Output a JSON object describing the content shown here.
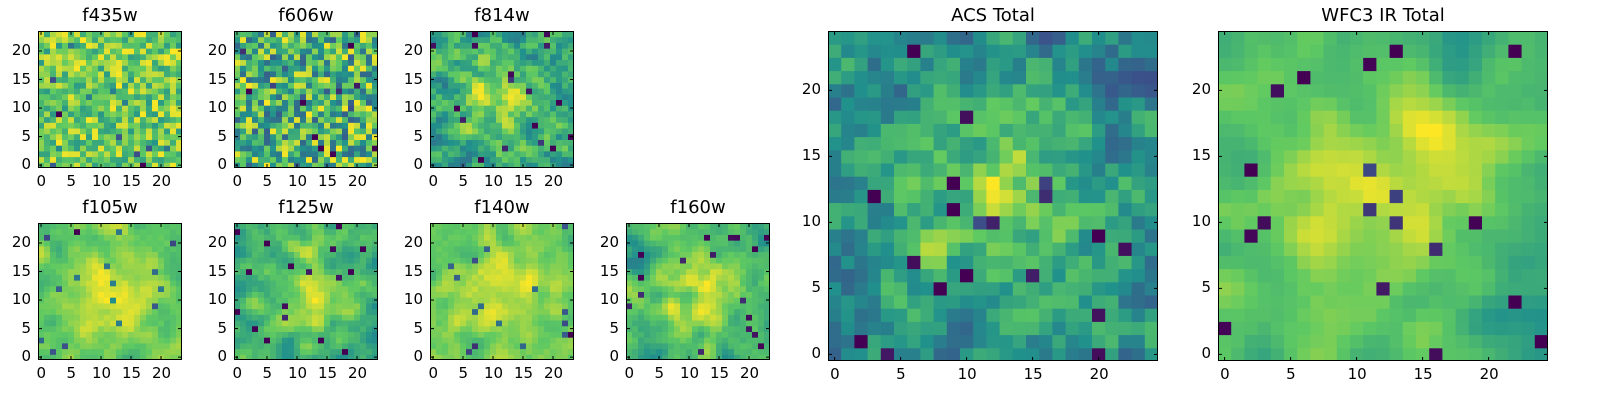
{
  "colormap": [
    "#440154",
    "#3b528b",
    "#21918c",
    "#5ec962",
    "#fde725"
  ],
  "chart_data": [
    {
      "id": "f435w",
      "type": "heatmap",
      "title": "f435w",
      "size": 24,
      "seed": 435,
      "smooth": 0,
      "xticks": [
        0,
        5,
        10,
        15,
        20
      ],
      "yticks": [
        0,
        5,
        10,
        15,
        20
      ]
    },
    {
      "id": "f606w",
      "type": "heatmap",
      "title": "f606w",
      "size": 24,
      "seed": 606,
      "smooth": 0,
      "xticks": [
        0,
        5,
        10,
        15,
        20
      ],
      "yticks": [
        0,
        5,
        10,
        15,
        20
      ]
    },
    {
      "id": "f814w",
      "type": "heatmap",
      "title": "f814w",
      "size": 24,
      "seed": 814,
      "smooth": 1,
      "xticks": [
        0,
        5,
        10,
        15,
        20
      ],
      "yticks": [
        0,
        5,
        10,
        15,
        20
      ]
    },
    {
      "id": "f105w",
      "type": "heatmap",
      "title": "f105w",
      "size": 24,
      "seed": 105,
      "smooth": 2,
      "xticks": [
        0,
        5,
        10,
        15,
        20
      ],
      "yticks": [
        0,
        5,
        10,
        15,
        20
      ]
    },
    {
      "id": "f125w",
      "type": "heatmap",
      "title": "f125w",
      "size": 24,
      "seed": 125,
      "smooth": 2,
      "xticks": [
        0,
        5,
        10,
        15,
        20
      ],
      "yticks": [
        0,
        5,
        10,
        15,
        20
      ]
    },
    {
      "id": "f140w",
      "type": "heatmap",
      "title": "f140w",
      "size": 24,
      "seed": 140,
      "smooth": 2,
      "xticks": [
        0,
        5,
        10,
        15,
        20
      ],
      "yticks": [
        0,
        5,
        10,
        15,
        20
      ]
    },
    {
      "id": "f160w",
      "type": "heatmap",
      "title": "f160w",
      "size": 24,
      "seed": 160,
      "smooth": 2,
      "xticks": [
        0,
        5,
        10,
        15,
        20
      ],
      "yticks": [
        0,
        5,
        10,
        15,
        20
      ]
    },
    {
      "id": "acs-total",
      "type": "heatmap",
      "title": "ACS Total",
      "size": 25,
      "seed": 77,
      "smooth": 1,
      "xticks": [
        0,
        5,
        10,
        15,
        20
      ],
      "yticks": [
        0,
        5,
        10,
        15,
        20
      ]
    },
    {
      "id": "wfc3-total",
      "type": "heatmap",
      "title": "WFC3 IR Total",
      "size": 25,
      "seed": 31,
      "smooth": 3,
      "xticks": [
        0,
        5,
        10,
        15,
        20
      ],
      "yticks": [
        0,
        5,
        10,
        15,
        20
      ]
    }
  ]
}
